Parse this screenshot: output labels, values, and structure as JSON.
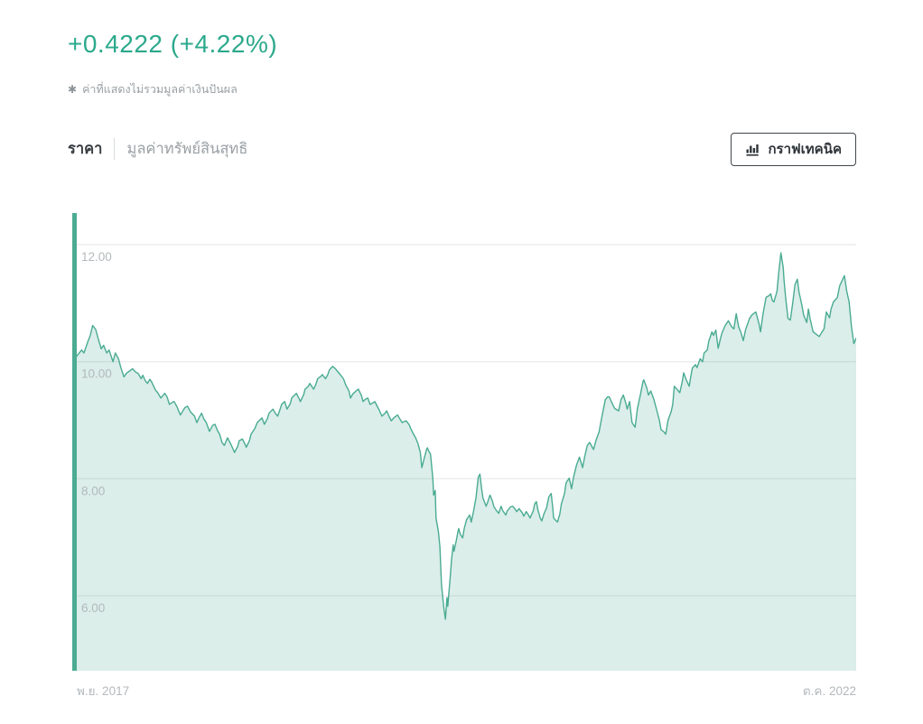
{
  "header": {
    "change_text": "+0.4222 (+4.22%)",
    "change_color": "#2ca98c",
    "note_symbol": "✱",
    "note_text": "ค่าที่แสดงไม่รวมมูลค่าเงินปันผล"
  },
  "tabs": [
    {
      "label": "ราคา",
      "active": true
    },
    {
      "label": "มูลค่าทรัพย์สินสุทธิ",
      "active": false
    }
  ],
  "toolbar": {
    "technical_chart_label": "กราฟเทคนิค",
    "icon": "bar-chart-icon"
  },
  "chart_data": {
    "type": "area",
    "title": "",
    "xlabel": "",
    "ylabel": "",
    "x_start_label": "พ.ย. 2017",
    "x_end_label": "ต.ค. 2022",
    "y_ticks": [
      12,
      10,
      8,
      6
    ],
    "y_tick_labels": [
      "12.00",
      "10.00",
      "8.00",
      "6.00"
    ],
    "ylim": [
      4.72,
      12.54
    ],
    "grid": true,
    "legend": "none",
    "line_color": "#4aab92",
    "fill_color": "rgba(77,172,147,0.20)",
    "accent_bar_color": "#4cab93",
    "grid_color": "#e4e6e7",
    "points": [
      [
        0.0,
        10.02
      ],
      [
        0.006,
        10.1
      ],
      [
        0.012,
        10.2
      ],
      [
        0.015,
        10.15
      ],
      [
        0.02,
        10.35
      ],
      [
        0.023,
        10.45
      ],
      [
        0.026,
        10.62
      ],
      [
        0.03,
        10.55
      ],
      [
        0.033,
        10.4
      ],
      [
        0.037,
        10.22
      ],
      [
        0.04,
        10.28
      ],
      [
        0.044,
        10.15
      ],
      [
        0.047,
        10.2
      ],
      [
        0.052,
        10.0
      ],
      [
        0.055,
        10.15
      ],
      [
        0.059,
        10.05
      ],
      [
        0.062,
        9.9
      ],
      [
        0.066,
        9.74
      ],
      [
        0.069,
        9.8
      ],
      [
        0.074,
        9.85
      ],
      [
        0.077,
        9.88
      ],
      [
        0.081,
        9.82
      ],
      [
        0.084,
        9.8
      ],
      [
        0.088,
        9.71
      ],
      [
        0.09,
        9.77
      ],
      [
        0.093,
        9.68
      ],
      [
        0.096,
        9.63
      ],
      [
        0.099,
        9.7
      ],
      [
        0.101,
        9.66
      ],
      [
        0.106,
        9.52
      ],
      [
        0.109,
        9.47
      ],
      [
        0.113,
        9.38
      ],
      [
        0.118,
        9.46
      ],
      [
        0.121,
        9.4
      ],
      [
        0.124,
        9.27
      ],
      [
        0.128,
        9.31
      ],
      [
        0.13,
        9.32
      ],
      [
        0.134,
        9.22
      ],
      [
        0.136,
        9.15
      ],
      [
        0.138,
        9.09
      ],
      [
        0.142,
        9.18
      ],
      [
        0.144,
        9.22
      ],
      [
        0.147,
        9.24
      ],
      [
        0.151,
        9.14
      ],
      [
        0.156,
        9.07
      ],
      [
        0.159,
        8.96
      ],
      [
        0.162,
        9.05
      ],
      [
        0.165,
        9.12
      ],
      [
        0.168,
        9.02
      ],
      [
        0.171,
        8.96
      ],
      [
        0.175,
        8.81
      ],
      [
        0.179,
        8.91
      ],
      [
        0.182,
        8.93
      ],
      [
        0.185,
        8.83
      ],
      [
        0.188,
        8.76
      ],
      [
        0.191,
        8.62
      ],
      [
        0.194,
        8.57
      ],
      [
        0.198,
        8.7
      ],
      [
        0.202,
        8.6
      ],
      [
        0.204,
        8.54
      ],
      [
        0.207,
        8.45
      ],
      [
        0.211,
        8.55
      ],
      [
        0.213,
        8.65
      ],
      [
        0.217,
        8.68
      ],
      [
        0.22,
        8.6
      ],
      [
        0.222,
        8.54
      ],
      [
        0.226,
        8.65
      ],
      [
        0.228,
        8.76
      ],
      [
        0.233,
        8.86
      ],
      [
        0.236,
        8.96
      ],
      [
        0.242,
        9.04
      ],
      [
        0.245,
        8.93
      ],
      [
        0.249,
        9.03
      ],
      [
        0.251,
        9.12
      ],
      [
        0.256,
        9.19
      ],
      [
        0.259,
        9.12
      ],
      [
        0.262,
        9.07
      ],
      [
        0.265,
        9.18
      ],
      [
        0.267,
        9.27
      ],
      [
        0.271,
        9.32
      ],
      [
        0.274,
        9.19
      ],
      [
        0.278,
        9.28
      ],
      [
        0.28,
        9.38
      ],
      [
        0.283,
        9.42
      ],
      [
        0.286,
        9.46
      ],
      [
        0.289,
        9.38
      ],
      [
        0.291,
        9.32
      ],
      [
        0.295,
        9.43
      ],
      [
        0.297,
        9.53
      ],
      [
        0.301,
        9.58
      ],
      [
        0.303,
        9.63
      ],
      [
        0.308,
        9.53
      ],
      [
        0.311,
        9.62
      ],
      [
        0.313,
        9.71
      ],
      [
        0.317,
        9.75
      ],
      [
        0.319,
        9.78
      ],
      [
        0.323,
        9.71
      ],
      [
        0.326,
        9.78
      ],
      [
        0.328,
        9.86
      ],
      [
        0.332,
        9.92
      ],
      [
        0.335,
        9.89
      ],
      [
        0.34,
        9.81
      ],
      [
        0.343,
        9.76
      ],
      [
        0.346,
        9.71
      ],
      [
        0.349,
        9.6
      ],
      [
        0.353,
        9.5
      ],
      [
        0.355,
        9.38
      ],
      [
        0.358,
        9.45
      ],
      [
        0.362,
        9.5
      ],
      [
        0.365,
        9.53
      ],
      [
        0.369,
        9.42
      ],
      [
        0.371,
        9.32
      ],
      [
        0.374,
        9.36
      ],
      [
        0.377,
        9.38
      ],
      [
        0.38,
        9.27
      ],
      [
        0.384,
        9.3
      ],
      [
        0.386,
        9.32
      ],
      [
        0.389,
        9.24
      ],
      [
        0.392,
        9.16
      ],
      [
        0.395,
        9.07
      ],
      [
        0.399,
        9.12
      ],
      [
        0.401,
        9.16
      ],
      [
        0.404,
        9.07
      ],
      [
        0.407,
        8.99
      ],
      [
        0.41,
        9.04
      ],
      [
        0.415,
        9.09
      ],
      [
        0.418,
        9.02
      ],
      [
        0.421,
        8.96
      ],
      [
        0.424,
        8.98
      ],
      [
        0.426,
        8.99
      ],
      [
        0.43,
        8.92
      ],
      [
        0.432,
        8.85
      ],
      [
        0.435,
        8.77
      ],
      [
        0.438,
        8.7
      ],
      [
        0.441,
        8.6
      ],
      [
        0.444,
        8.45
      ],
      [
        0.446,
        8.19
      ],
      [
        0.449,
        8.35
      ],
      [
        0.452,
        8.5
      ],
      [
        0.453,
        8.53
      ],
      [
        0.455,
        8.47
      ],
      [
        0.457,
        8.42
      ],
      [
        0.46,
        8.0
      ],
      [
        0.461,
        7.72
      ],
      [
        0.463,
        7.8
      ],
      [
        0.464,
        7.33
      ],
      [
        0.467,
        7.1
      ],
      [
        0.469,
        6.84
      ],
      [
        0.471,
        6.2
      ],
      [
        0.474,
        5.8
      ],
      [
        0.476,
        5.6
      ],
      [
        0.478,
        5.97
      ],
      [
        0.479,
        5.82
      ],
      [
        0.482,
        6.3
      ],
      [
        0.484,
        6.64
      ],
      [
        0.486,
        6.87
      ],
      [
        0.487,
        6.76
      ],
      [
        0.49,
        6.95
      ],
      [
        0.492,
        7.1
      ],
      [
        0.493,
        7.15
      ],
      [
        0.495,
        7.05
      ],
      [
        0.498,
        6.99
      ],
      [
        0.5,
        7.15
      ],
      [
        0.503,
        7.3
      ],
      [
        0.507,
        7.38
      ],
      [
        0.509,
        7.26
      ],
      [
        0.512,
        7.45
      ],
      [
        0.515,
        7.67
      ],
      [
        0.518,
        8.03
      ],
      [
        0.52,
        8.08
      ],
      [
        0.522,
        7.85
      ],
      [
        0.524,
        7.67
      ],
      [
        0.528,
        7.53
      ],
      [
        0.53,
        7.6
      ],
      [
        0.532,
        7.69
      ],
      [
        0.533,
        7.72
      ],
      [
        0.536,
        7.62
      ],
      [
        0.538,
        7.52
      ],
      [
        0.541,
        7.46
      ],
      [
        0.544,
        7.41
      ],
      [
        0.547,
        7.53
      ],
      [
        0.549,
        7.46
      ],
      [
        0.553,
        7.38
      ],
      [
        0.555,
        7.45
      ],
      [
        0.559,
        7.52
      ],
      [
        0.562,
        7.53
      ],
      [
        0.565,
        7.48
      ],
      [
        0.567,
        7.44
      ],
      [
        0.57,
        7.49
      ],
      [
        0.574,
        7.42
      ],
      [
        0.576,
        7.36
      ],
      [
        0.579,
        7.44
      ],
      [
        0.582,
        7.38
      ],
      [
        0.584,
        7.33
      ],
      [
        0.588,
        7.45
      ],
      [
        0.59,
        7.57
      ],
      [
        0.592,
        7.61
      ],
      [
        0.594,
        7.47
      ],
      [
        0.597,
        7.33
      ],
      [
        0.599,
        7.28
      ],
      [
        0.602,
        7.41
      ],
      [
        0.605,
        7.5
      ],
      [
        0.608,
        7.69
      ],
      [
        0.611,
        7.75
      ],
      [
        0.613,
        7.5
      ],
      [
        0.614,
        7.33
      ],
      [
        0.616,
        7.3
      ],
      [
        0.619,
        7.26
      ],
      [
        0.622,
        7.4
      ],
      [
        0.624,
        7.57
      ],
      [
        0.628,
        7.75
      ],
      [
        0.63,
        7.93
      ],
      [
        0.634,
        8.01
      ],
      [
        0.637,
        7.83
      ],
      [
        0.639,
        8.0
      ],
      [
        0.643,
        8.22
      ],
      [
        0.645,
        8.3
      ],
      [
        0.647,
        8.37
      ],
      [
        0.651,
        8.19
      ],
      [
        0.654,
        8.4
      ],
      [
        0.657,
        8.57
      ],
      [
        0.66,
        8.62
      ],
      [
        0.665,
        8.5
      ],
      [
        0.668,
        8.65
      ],
      [
        0.672,
        8.8
      ],
      [
        0.676,
        9.09
      ],
      [
        0.68,
        9.35
      ],
      [
        0.683,
        9.4
      ],
      [
        0.685,
        9.4
      ],
      [
        0.689,
        9.28
      ],
      [
        0.692,
        9.2
      ],
      [
        0.697,
        9.16
      ],
      [
        0.7,
        9.35
      ],
      [
        0.703,
        9.43
      ],
      [
        0.706,
        9.3
      ],
      [
        0.708,
        9.19
      ],
      [
        0.711,
        9.32
      ],
      [
        0.714,
        8.96
      ],
      [
        0.718,
        8.88
      ],
      [
        0.721,
        9.2
      ],
      [
        0.725,
        9.45
      ],
      [
        0.728,
        9.66
      ],
      [
        0.729,
        9.69
      ],
      [
        0.733,
        9.55
      ],
      [
        0.735,
        9.43
      ],
      [
        0.738,
        9.5
      ],
      [
        0.742,
        9.35
      ],
      [
        0.745,
        9.2
      ],
      [
        0.749,
        9.0
      ],
      [
        0.751,
        8.84
      ],
      [
        0.755,
        8.8
      ],
      [
        0.757,
        8.76
      ],
      [
        0.76,
        9.0
      ],
      [
        0.764,
        9.15
      ],
      [
        0.766,
        9.27
      ],
      [
        0.768,
        9.58
      ],
      [
        0.772,
        9.52
      ],
      [
        0.775,
        9.47
      ],
      [
        0.778,
        9.65
      ],
      [
        0.78,
        9.81
      ],
      [
        0.783,
        9.7
      ],
      [
        0.787,
        9.58
      ],
      [
        0.789,
        9.75
      ],
      [
        0.791,
        9.89
      ],
      [
        0.795,
        9.95
      ],
      [
        0.797,
        9.9
      ],
      [
        0.801,
        10.05
      ],
      [
        0.804,
        10.0
      ],
      [
        0.806,
        10.15
      ],
      [
        0.81,
        10.2
      ],
      [
        0.812,
        10.35
      ],
      [
        0.816,
        10.51
      ],
      [
        0.818,
        10.45
      ],
      [
        0.821,
        10.54
      ],
      [
        0.824,
        10.23
      ],
      [
        0.827,
        10.4
      ],
      [
        0.829,
        10.5
      ],
      [
        0.833,
        10.62
      ],
      [
        0.837,
        10.7
      ],
      [
        0.841,
        10.6
      ],
      [
        0.844,
        10.56
      ],
      [
        0.847,
        10.82
      ],
      [
        0.85,
        10.6
      ],
      [
        0.853,
        10.5
      ],
      [
        0.856,
        10.36
      ],
      [
        0.859,
        10.55
      ],
      [
        0.864,
        10.74
      ],
      [
        0.867,
        10.8
      ],
      [
        0.872,
        10.85
      ],
      [
        0.876,
        10.65
      ],
      [
        0.878,
        10.51
      ],
      [
        0.881,
        10.8
      ],
      [
        0.885,
        11.1
      ],
      [
        0.889,
        11.13
      ],
      [
        0.891,
        11.16
      ],
      [
        0.893,
        11.05
      ],
      [
        0.895,
        11.02
      ],
      [
        0.899,
        11.2
      ],
      [
        0.901,
        11.5
      ],
      [
        0.904,
        11.86
      ],
      [
        0.907,
        11.6
      ],
      [
        0.908,
        11.4
      ],
      [
        0.91,
        11.1
      ],
      [
        0.913,
        10.74
      ],
      [
        0.916,
        10.71
      ],
      [
        0.919,
        11.0
      ],
      [
        0.922,
        11.32
      ],
      [
        0.925,
        11.41
      ],
      [
        0.927,
        11.2
      ],
      [
        0.931,
        10.95
      ],
      [
        0.933,
        10.8
      ],
      [
        0.937,
        10.67
      ],
      [
        0.939,
        10.9
      ],
      [
        0.941,
        10.75
      ],
      [
        0.945,
        10.51
      ],
      [
        0.948,
        10.48
      ],
      [
        0.953,
        10.43
      ],
      [
        0.956,
        10.5
      ],
      [
        0.959,
        10.56
      ],
      [
        0.962,
        10.85
      ],
      [
        0.966,
        10.75
      ],
      [
        0.968,
        10.9
      ],
      [
        0.971,
        11.02
      ],
      [
        0.976,
        11.1
      ],
      [
        0.979,
        11.3
      ],
      [
        0.985,
        11.47
      ],
      [
        0.988,
        11.2
      ],
      [
        0.991,
        11.02
      ],
      [
        0.994,
        10.6
      ],
      [
        0.997,
        10.31
      ],
      [
        1.0,
        10.4
      ]
    ]
  }
}
